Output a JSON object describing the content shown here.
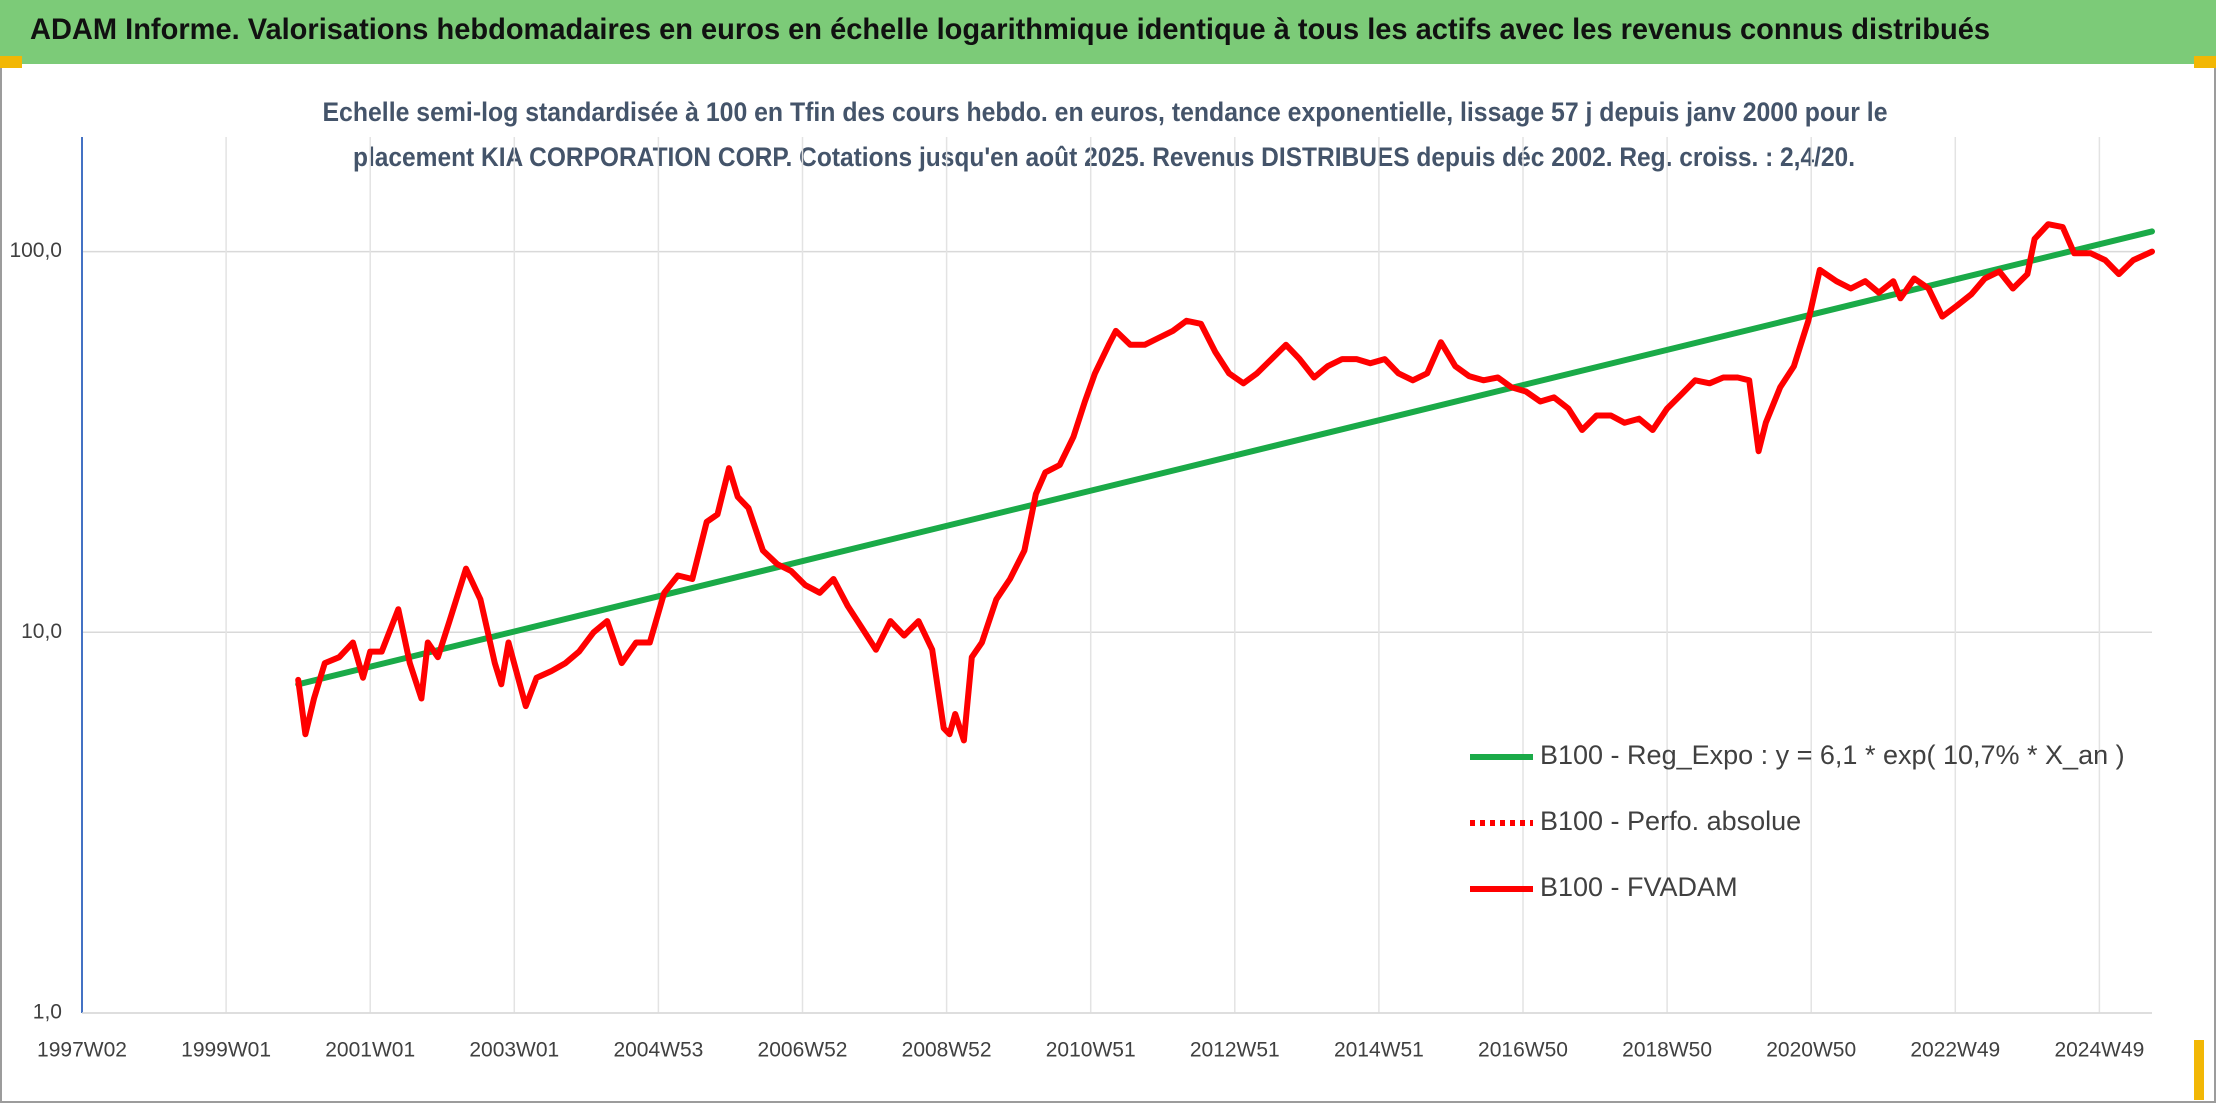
{
  "chart_data": {
    "type": "line",
    "title": "ADAM Informe. Valorisations hebdomadaires en euros en échelle logarithmique identique à tous les actifs avec les revenus connus distribués",
    "subtitle": [
      "Echelle semi-log standardisée à 100 en Tfin des cours hebdo. en euros, tendance exponentielle, lissage 57 j depuis janv 2000 pour le",
      "placement KIA CORPORATION CORP. Cotations jusqu'en août 2025. Revenus DISTRIBUES depuis déc 2002. Reg. croiss. : 2,4/20."
    ],
    "log_scale": true,
    "grid": true,
    "legend": "lower right",
    "xlim": [
      1997,
      2025.73
    ],
    "xticks": [
      {
        "value": 1997,
        "label": "1997W02"
      },
      {
        "value": 1999,
        "label": "1999W01"
      },
      {
        "value": 2001,
        "label": "2001W01"
      },
      {
        "value": 2003,
        "label": "2003W01"
      },
      {
        "value": 2005,
        "label": "2004W53"
      },
      {
        "value": 2007,
        "label": "2006W52"
      },
      {
        "value": 2009,
        "label": "2008W52"
      },
      {
        "value": 2011,
        "label": "2010W51"
      },
      {
        "value": 2013,
        "label": "2012W51"
      },
      {
        "value": 2015,
        "label": "2014W51"
      },
      {
        "value": 2017,
        "label": "2016W50"
      },
      {
        "value": 2019,
        "label": "2018W50"
      },
      {
        "value": 2021,
        "label": "2020W50"
      },
      {
        "value": 2023,
        "label": "2022W49"
      },
      {
        "value": 2025,
        "label": "2024W49"
      }
    ],
    "ylim": [
      1,
      200
    ],
    "yticks": [
      {
        "value": 1,
        "label": "1,0"
      },
      {
        "value": 10,
        "label": "10,0"
      },
      {
        "value": 100,
        "label": "100,0"
      }
    ],
    "series": [
      {
        "name": "B100 - Reg_Expo : y = 6,1 * exp( 10,7% *  X_an )",
        "color": "#1aaa48",
        "style": "solid",
        "x": [
          2000.0,
          2025.73
        ],
        "values": [
          7.3,
          113
        ]
      },
      {
        "name": "B100 - Perfo. absolue",
        "color": "#ff0000",
        "style": "dotted",
        "x": [],
        "values": []
      },
      {
        "name": "B100 - FVADAM",
        "color": "#ff0000",
        "style": "solid",
        "x": [
          2000.0,
          2000.1,
          2000.22,
          2000.37,
          2000.57,
          2000.76,
          2000.9,
          2001.0,
          2001.16,
          2001.39,
          2001.55,
          2001.71,
          2001.8,
          2001.94,
          2002.1,
          2002.33,
          2002.53,
          2002.73,
          2002.82,
          2002.92,
          2003.16,
          2003.31,
          2003.51,
          2003.71,
          2003.9,
          2004.1,
          2004.29,
          2004.49,
          2004.69,
          2004.88,
          2005.08,
          2005.27,
          2005.47,
          2005.67,
          2005.82,
          2005.98,
          2006.1,
          2006.25,
          2006.45,
          2006.65,
          2006.84,
          2007.04,
          2007.24,
          2007.43,
          2007.63,
          2007.82,
          2008.02,
          2008.22,
          2008.41,
          2008.61,
          2008.8,
          2008.96,
          2009.04,
          2009.12,
          2009.24,
          2009.35,
          2009.49,
          2009.69,
          2009.88,
          2010.08,
          2010.24,
          2010.37,
          2010.57,
          2010.76,
          2010.92,
          2011.06,
          2011.25,
          2011.35,
          2011.55,
          2011.75,
          2011.94,
          2012.14,
          2012.33,
          2012.53,
          2012.73,
          2012.92,
          2013.12,
          2013.31,
          2013.51,
          2013.71,
          2013.9,
          2014.1,
          2014.29,
          2014.49,
          2014.69,
          2014.88,
          2015.08,
          2015.27,
          2015.47,
          2015.67,
          2015.86,
          2016.06,
          2016.25,
          2016.45,
          2016.65,
          2016.84,
          2017.04,
          2017.24,
          2017.43,
          2017.63,
          2017.82,
          2018.02,
          2018.22,
          2018.41,
          2018.61,
          2018.8,
          2019.0,
          2019.2,
          2019.39,
          2019.59,
          2019.78,
          2019.98,
          2020.14,
          2020.27,
          2020.37,
          2020.57,
          2020.76,
          2020.96,
          2021.12,
          2021.35,
          2021.55,
          2021.75,
          2021.94,
          2022.14,
          2022.24,
          2022.43,
          2022.63,
          2022.82,
          2023.02,
          2023.22,
          2023.41,
          2023.61,
          2023.8,
          2024.0,
          2024.1,
          2024.29,
          2024.49,
          2024.65,
          2024.88,
          2025.08,
          2025.27,
          2025.47,
          2025.73
        ],
        "values": [
          7.5,
          5.4,
          6.7,
          8.3,
          8.6,
          9.4,
          7.6,
          8.9,
          8.9,
          11.5,
          8.3,
          6.7,
          9.4,
          8.6,
          10.7,
          14.7,
          12.2,
          8.3,
          7.3,
          9.4,
          6.4,
          7.6,
          7.9,
          8.3,
          8.9,
          10,
          10.7,
          8.3,
          9.4,
          9.4,
          12.7,
          14.1,
          13.8,
          19.5,
          20.4,
          27,
          22.7,
          21.2,
          16.4,
          15.1,
          14.5,
          13.3,
          12.7,
          13.8,
          11.7,
          10.3,
          9.0,
          10.7,
          9.8,
          10.7,
          9.0,
          5.6,
          5.4,
          6.1,
          5.2,
          8.6,
          9.4,
          12.2,
          13.8,
          16.4,
          23.1,
          26.3,
          27.5,
          32.6,
          40.4,
          47.9,
          56.9,
          61.9,
          56.9,
          56.9,
          59.3,
          61.9,
          65.8,
          64.6,
          54.5,
          47.9,
          45.1,
          47.9,
          52.2,
          56.9,
          52.2,
          46.7,
          50,
          52.2,
          52.2,
          50.9,
          52.2,
          47.9,
          45.9,
          47.9,
          57.8,
          50,
          47.1,
          45.9,
          46.7,
          44,
          42.9,
          40.4,
          41.4,
          38.7,
          34,
          37.1,
          37.1,
          35.5,
          36.4,
          34,
          38.7,
          42.2,
          45.9,
          45.1,
          46.7,
          46.7,
          45.9,
          29.9,
          35.5,
          44,
          50,
          65.8,
          89.5,
          83.6,
          80,
          83.6,
          78,
          83.6,
          75.4,
          85,
          80,
          67.5,
          72,
          77.2,
          85,
          88.7,
          80,
          87.3,
          108,
          118,
          116,
          99,
          99,
          95,
          87.3,
          95,
          100
        ]
      }
    ]
  }
}
